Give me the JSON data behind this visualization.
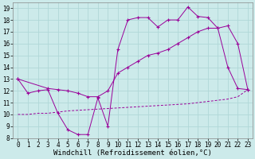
{
  "background_color": "#cceaea",
  "grid_color": "#b0d8d8",
  "line_color": "#990099",
  "xlabel": "Windchill (Refroidissement éolien,°C)",
  "xlabel_fontsize": 6.5,
  "tick_fontsize": 5.5,
  "ylim": [
    8,
    19.5
  ],
  "xlim": [
    -0.5,
    23.5
  ],
  "yticks": [
    8,
    9,
    10,
    11,
    12,
    13,
    14,
    15,
    16,
    17,
    18,
    19
  ],
  "xticks": [
    0,
    1,
    2,
    3,
    4,
    5,
    6,
    7,
    8,
    9,
    10,
    11,
    12,
    13,
    14,
    15,
    16,
    17,
    18,
    19,
    20,
    21,
    22,
    23
  ],
  "line1_x": [
    0,
    1,
    2,
    3,
    4,
    5,
    6,
    7,
    8,
    9,
    10,
    11,
    12,
    13,
    14,
    15,
    16,
    17,
    18,
    19,
    20,
    21,
    22,
    23
  ],
  "line1_y": [
    13,
    11.8,
    12.0,
    12.1,
    10.1,
    8.7,
    8.3,
    8.3,
    11.4,
    9.0,
    15.5,
    18.0,
    18.2,
    18.2,
    17.4,
    18.0,
    18.0,
    19.1,
    18.3,
    18.2,
    17.3,
    14.0,
    12.2,
    12.1
  ],
  "line2_x": [
    0,
    3,
    4,
    5,
    6,
    7,
    8,
    9,
    10,
    11,
    12,
    13,
    14,
    15,
    16,
    17,
    18,
    19,
    20,
    21,
    22,
    23
  ],
  "line2_y": [
    13,
    12.2,
    12.1,
    12.0,
    11.8,
    11.5,
    11.5,
    12.0,
    13.5,
    14.0,
    14.5,
    15.0,
    15.2,
    15.5,
    16.0,
    16.5,
    17.0,
    17.3,
    17.3,
    17.5,
    16.0,
    12.1
  ],
  "line3_x": [
    0,
    1,
    2,
    3,
    4,
    5,
    6,
    7,
    8,
    9,
    10,
    11,
    12,
    13,
    14,
    15,
    16,
    17,
    18,
    19,
    20,
    21,
    22,
    23
  ],
  "line3_y": [
    10.0,
    10.0,
    10.1,
    10.1,
    10.2,
    10.3,
    10.35,
    10.4,
    10.45,
    10.5,
    10.55,
    10.6,
    10.65,
    10.7,
    10.75,
    10.8,
    10.85,
    10.9,
    11.0,
    11.1,
    11.2,
    11.3,
    11.5,
    12.1
  ]
}
